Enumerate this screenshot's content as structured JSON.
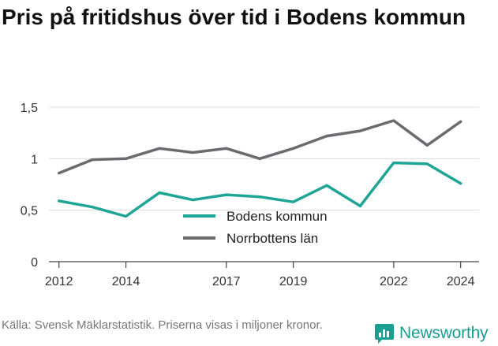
{
  "title": "Pris på fritidshus över tid i Bodens kommun",
  "source": "Källa: Svensk Mäklarstatistik. Priserna visas i miljoner kronor.",
  "brand": {
    "name": "Newsworthy",
    "icon": "newsworthy-logo-icon",
    "color": "#1a9e91"
  },
  "chart_data": {
    "type": "line",
    "x": [
      2012,
      2013,
      2014,
      2015,
      2016,
      2017,
      2018,
      2019,
      2020,
      2021,
      2022,
      2023,
      2024
    ],
    "xticks": [
      2012,
      2014,
      2017,
      2019,
      2022,
      2024
    ],
    "xtick_labels": [
      "2012",
      "2014",
      "2017",
      "2019",
      "2022",
      "2024"
    ],
    "yticks": [
      0,
      0.5,
      1,
      1.5
    ],
    "ytick_labels": [
      "0",
      "0,5",
      "1",
      "1,5"
    ],
    "ylim": [
      0,
      1.5
    ],
    "grid": true,
    "legend_position": "center",
    "series": [
      {
        "name": "Bodens kommun",
        "color": "#1fa596",
        "values": [
          0.59,
          0.53,
          0.44,
          0.67,
          0.6,
          0.65,
          0.63,
          0.58,
          0.74,
          0.54,
          0.96,
          0.95,
          0.76
        ]
      },
      {
        "name": "Norrbottens län",
        "color": "#6b6b6f",
        "values": [
          0.86,
          0.99,
          1.0,
          1.1,
          1.06,
          1.1,
          1.0,
          1.1,
          1.22,
          1.27,
          1.37,
          1.13,
          1.36
        ]
      }
    ]
  }
}
